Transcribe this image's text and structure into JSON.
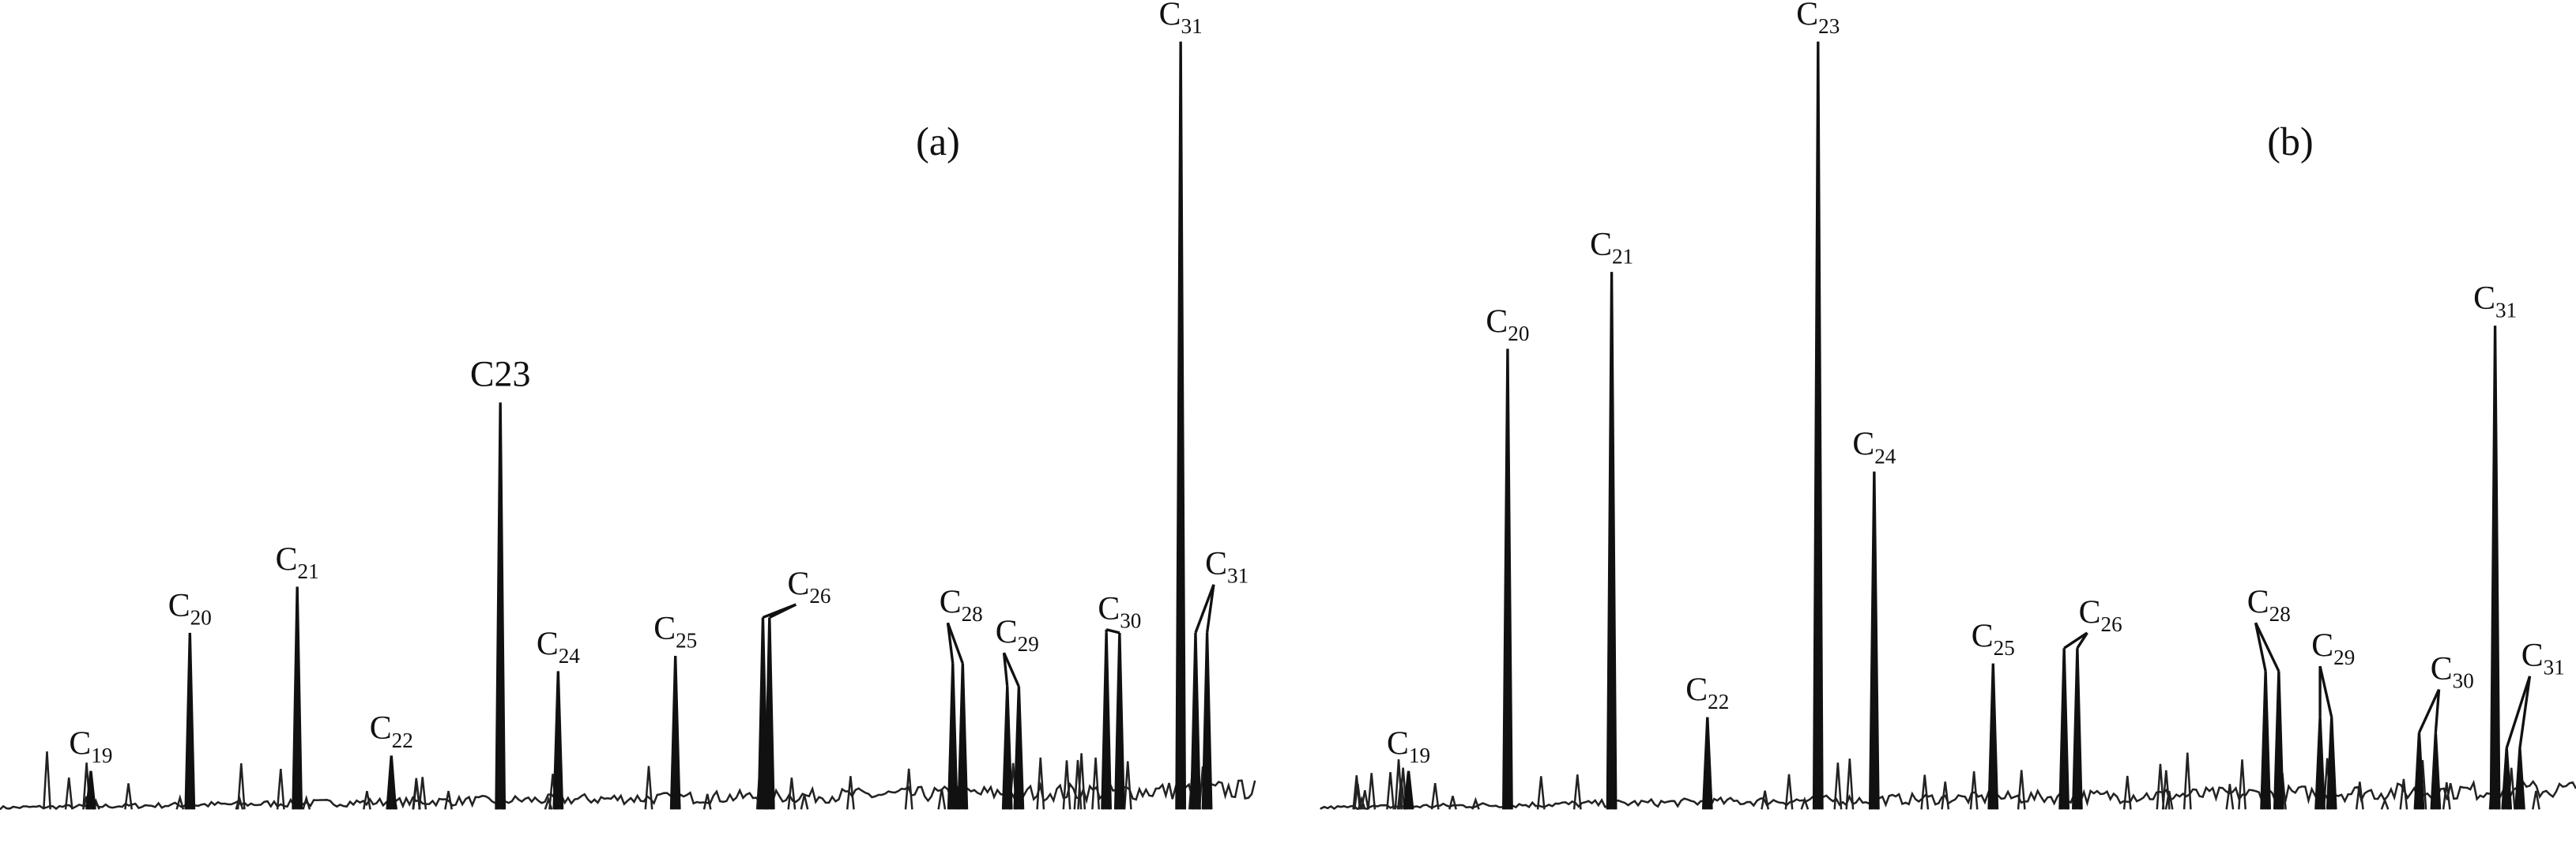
{
  "chart_data": [
    {
      "type": "chromatogram",
      "panel_label": "(a)",
      "peaks": [
        {
          "name": "C",
          "sub": "19",
          "height": 5
        },
        {
          "name": "C",
          "sub": "20",
          "height": 23
        },
        {
          "name": "C",
          "sub": "21",
          "height": 29
        },
        {
          "name": "C",
          "sub": "22",
          "height": 7
        },
        {
          "name": "C23",
          "height": 53
        },
        {
          "name": "C",
          "sub": "24",
          "height": 18
        },
        {
          "name": "C",
          "sub": "25",
          "height": 20
        },
        {
          "name": "C",
          "sub": "26",
          "height": 25
        },
        {
          "name": "C",
          "sub": "28",
          "height": 19
        },
        {
          "name": "C",
          "sub": "29",
          "height": 16
        },
        {
          "name": "C",
          "sub": "30",
          "height": 23
        },
        {
          "name": "C",
          "sub": "31",
          "height": 100
        },
        {
          "name": "C",
          "sub": "31",
          "height": 23
        }
      ]
    },
    {
      "type": "chromatogram",
      "panel_label": "(b)",
      "peaks": [
        {
          "name": "C",
          "sub": "19",
          "height": 5
        },
        {
          "name": "C",
          "sub": "20",
          "height": 60
        },
        {
          "name": "C",
          "sub": "21",
          "height": 70
        },
        {
          "name": "C",
          "sub": "22",
          "height": 12
        },
        {
          "name": "C",
          "sub": "23",
          "height": 100
        },
        {
          "name": "C",
          "sub": "24",
          "height": 44
        },
        {
          "name": "C",
          "sub": "25",
          "height": 19
        },
        {
          "name": "C",
          "sub": "26",
          "height": 21
        },
        {
          "name": "C",
          "sub": "28",
          "height": 18
        },
        {
          "name": "C",
          "sub": "29",
          "height": 12
        },
        {
          "name": "C",
          "sub": "30",
          "height": 10
        },
        {
          "name": "C",
          "sub": "31",
          "height": 63
        },
        {
          "name": "C",
          "sub": "31",
          "height": 8
        }
      ]
    }
  ]
}
